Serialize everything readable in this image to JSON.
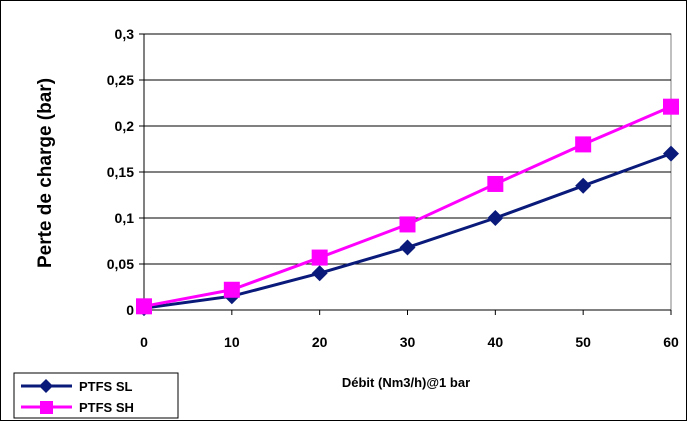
{
  "chart_data": {
    "type": "line",
    "title": "",
    "xlabel": "Débit (Nm3/h)@1 bar",
    "ylabel": "Perte de charge (bar)",
    "x": [
      0,
      10,
      20,
      30,
      40,
      50,
      60
    ],
    "x_tick_labels": [
      "0",
      "10",
      "20",
      "30",
      "40",
      "50",
      "60"
    ],
    "y_tick_labels": [
      "0",
      "0,05",
      "0,1",
      "0,15",
      "0,2",
      "0,25",
      "0,3"
    ],
    "xlim": [
      0,
      60
    ],
    "ylim": [
      0,
      0.3
    ],
    "grid": "horizontal",
    "legend_position": "bottom-left",
    "series": [
      {
        "name": "PTFS SL",
        "color": "#0A1A7A",
        "marker": "diamond",
        "values": [
          0.002,
          0.015,
          0.04,
          0.068,
          0.1,
          0.135,
          0.17
        ]
      },
      {
        "name": "PTFS SH",
        "color": "#FF00FF",
        "marker": "square",
        "values": [
          0.004,
          0.022,
          0.057,
          0.093,
          0.137,
          0.18,
          0.221
        ]
      }
    ]
  }
}
